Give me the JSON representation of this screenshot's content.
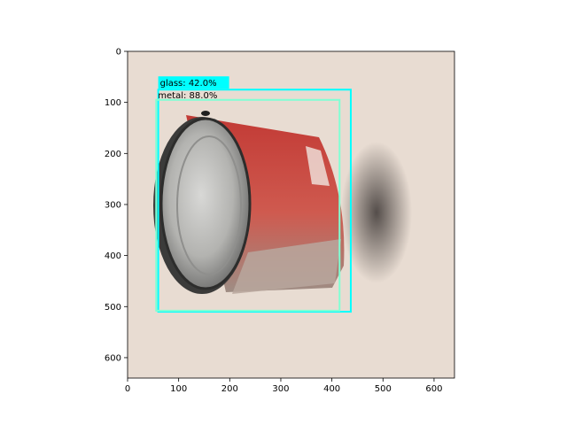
{
  "figure": {
    "xlim": [
      0,
      640
    ],
    "ylim": [
      640,
      0
    ],
    "x_ticks": [
      "0",
      "100",
      "200",
      "300",
      "400",
      "500",
      "600"
    ],
    "y_ticks": [
      "0",
      "100",
      "200",
      "300",
      "400",
      "500",
      "600"
    ]
  },
  "image": {
    "subject": "soup-can-photo",
    "background_color": "#e8dcd2"
  },
  "detections": [
    {
      "label": "glass: 42.0%",
      "bbox_data": [
        60,
        75,
        437,
        510
      ],
      "color": "#00ffff"
    },
    {
      "label": "metal: 88.0%",
      "bbox_data": [
        56,
        95,
        415,
        508
      ],
      "color": "#7fffd4"
    }
  ]
}
